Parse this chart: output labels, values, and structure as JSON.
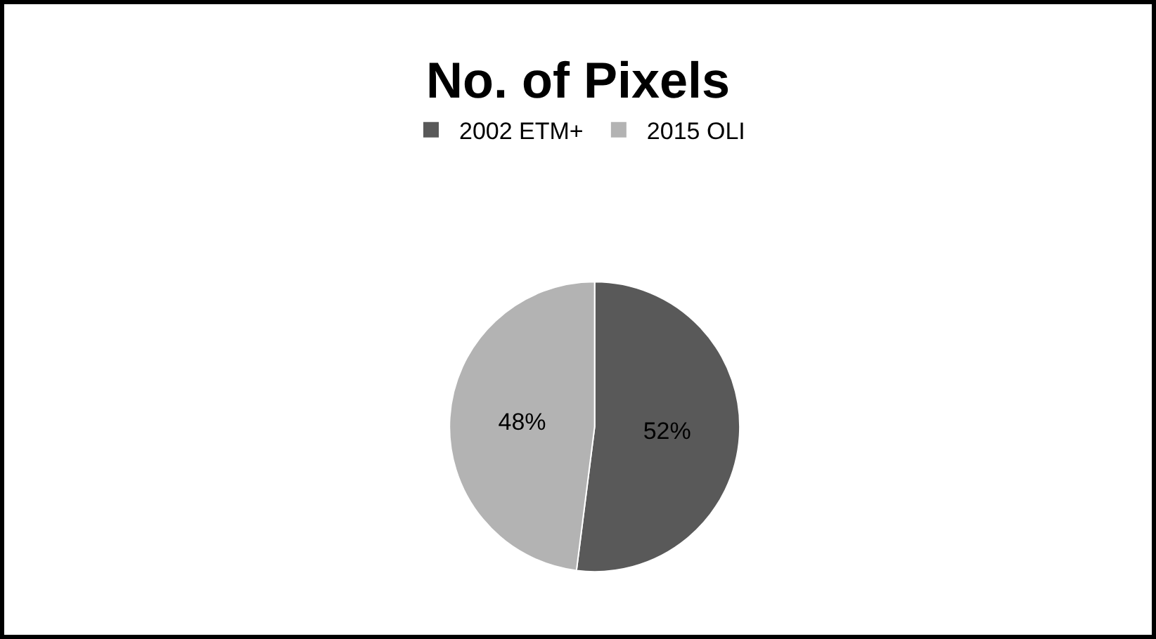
{
  "chart_data": {
    "type": "pie",
    "title": "No. of Pixels",
    "categories": [
      "2002 ETM+",
      "2015 OLI"
    ],
    "values": [
      52,
      48
    ],
    "colors": [
      "#595959",
      "#b3b3b3"
    ],
    "value_labels": [
      "52%",
      "48%"
    ],
    "legend": "top"
  }
}
